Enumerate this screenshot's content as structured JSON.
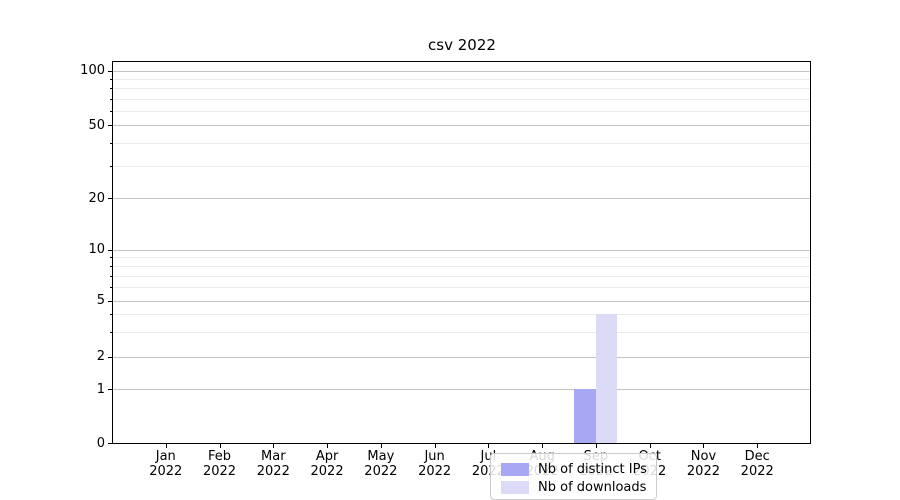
{
  "title": "csv 2022",
  "legend": {
    "items": [
      {
        "label": "Nb of distinct IPs",
        "color": "#a7a7f3"
      },
      {
        "label": "Nb of downloads",
        "color": "#dbdbf8"
      }
    ]
  },
  "chart_data": {
    "type": "bar",
    "title": "csv 2022",
    "categories": [
      {
        "month": "Jan",
        "year": "2022"
      },
      {
        "month": "Feb",
        "year": "2022"
      },
      {
        "month": "Mar",
        "year": "2022"
      },
      {
        "month": "Apr",
        "year": "2022"
      },
      {
        "month": "May",
        "year": "2022"
      },
      {
        "month": "Jun",
        "year": "2022"
      },
      {
        "month": "Jul",
        "year": "2022"
      },
      {
        "month": "Aug",
        "year": "2022"
      },
      {
        "month": "Sep",
        "year": "2022"
      },
      {
        "month": "Oct",
        "year": "2022"
      },
      {
        "month": "Nov",
        "year": "2022"
      },
      {
        "month": "Dec",
        "year": "2022"
      }
    ],
    "series": [
      {
        "name": "Nb of distinct IPs",
        "color": "#a7a7f3",
        "values": [
          0,
          0,
          0,
          0,
          0,
          0,
          0,
          0,
          1,
          0,
          0,
          0
        ]
      },
      {
        "name": "Nb of downloads",
        "color": "#dbdbf8",
        "values": [
          0,
          0,
          0,
          0,
          0,
          0,
          0,
          0,
          4,
          0,
          0,
          0
        ]
      }
    ],
    "xlabel": "",
    "ylabel": "",
    "yaxis": {
      "scale": "log-like (linear 0-1, logarithmic above)",
      "major_ticks": [
        100,
        50,
        20,
        10,
        5,
        2,
        1,
        0
      ],
      "minor_ticks": [
        90,
        80,
        70,
        60,
        40,
        30,
        9,
        8,
        7,
        6,
        4,
        3
      ],
      "ylim": [
        0,
        112
      ]
    },
    "grid": "horizontal major and minor gridlines",
    "legend_position": "inside bottom-center"
  }
}
